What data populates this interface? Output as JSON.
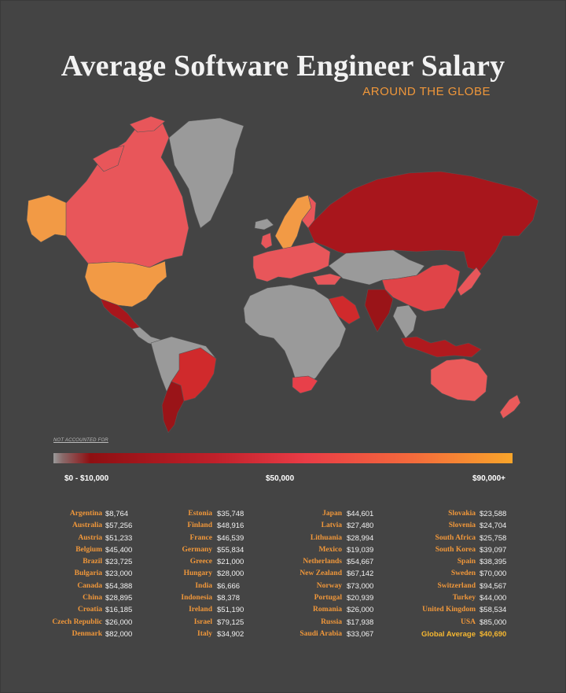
{
  "title": "Average Software Engineer Salary",
  "subtitle": "AROUND THE GLOBE",
  "legend": {
    "not_accounted": "NOT ACCOUNTED FOR",
    "low_label": "$0 - $10,000",
    "mid_label": "$50,000",
    "high_label": "$90,000+",
    "colors": {
      "none": "#9a9a9a",
      "low": "#8e0f12",
      "mid": "#ea3c46",
      "high": "#f9a52a"
    }
  },
  "columns": [
    [
      {
        "country": "Argentina",
        "salary": "$8,764"
      },
      {
        "country": "Australia",
        "salary": "$57,256"
      },
      {
        "country": "Austria",
        "salary": "$51,233"
      },
      {
        "country": "Belgium",
        "salary": "$45,400"
      },
      {
        "country": "Brazil",
        "salary": "$23,725"
      },
      {
        "country": "Bulgaria",
        "salary": "$23,000"
      },
      {
        "country": "Canada",
        "salary": "$54,388"
      },
      {
        "country": "China",
        "salary": "$28,895"
      },
      {
        "country": "Croatia",
        "salary": "$16,185"
      },
      {
        "country": "Czech Republic",
        "salary": "$26,000"
      },
      {
        "country": "Denmark",
        "salary": "$82,000"
      }
    ],
    [
      {
        "country": "Estonia",
        "salary": "$35,748"
      },
      {
        "country": "Finland",
        "salary": "$48,916"
      },
      {
        "country": "France",
        "salary": "$46,539"
      },
      {
        "country": "Germany",
        "salary": "$55,834"
      },
      {
        "country": "Greece",
        "salary": "$21,000"
      },
      {
        "country": "Hungary",
        "salary": "$28,000"
      },
      {
        "country": "India",
        "salary": "$6,666"
      },
      {
        "country": "Indonesia",
        "salary": "$8,378"
      },
      {
        "country": "Ireland",
        "salary": "$51,190"
      },
      {
        "country": "Israel",
        "salary": "$79,125"
      },
      {
        "country": "Italy",
        "salary": "$34,902"
      }
    ],
    [
      {
        "country": "Japan",
        "salary": "$44,601"
      },
      {
        "country": "Latvia",
        "salary": "$27,480"
      },
      {
        "country": "Lithuania",
        "salary": "$28,994"
      },
      {
        "country": "Mexico",
        "salary": "$19,039"
      },
      {
        "country": "Netherlands",
        "salary": "$54,667"
      },
      {
        "country": "New Zealand",
        "salary": "$67,142"
      },
      {
        "country": "Norway",
        "salary": "$73,000"
      },
      {
        "country": "Portugal",
        "salary": "$20,939"
      },
      {
        "country": "Romania",
        "salary": "$26,000"
      },
      {
        "country": "Russia",
        "salary": "$17,938"
      },
      {
        "country": "Saudi Arabia",
        "salary": "$33,067"
      }
    ],
    [
      {
        "country": "Slovakia",
        "salary": "$23,588"
      },
      {
        "country": "Slovenia",
        "salary": "$24,704"
      },
      {
        "country": "South Africa",
        "salary": "$25,758"
      },
      {
        "country": "South Korea",
        "salary": "$39,097"
      },
      {
        "country": "Spain",
        "salary": "$38,395"
      },
      {
        "country": "Sweden",
        "salary": "$70,000"
      },
      {
        "country": "Switzerland",
        "salary": "$94,567"
      },
      {
        "country": "Turkey",
        "salary": "$44,000"
      },
      {
        "country": "United Kingdom",
        "salary": "$58,534"
      },
      {
        "country": "USA",
        "salary": "$85,000"
      },
      {
        "country": "Global Average",
        "salary": "$40,690"
      }
    ]
  ],
  "map_regions": [
    {
      "region": "alaska",
      "color": "#f29a45"
    },
    {
      "region": "canada",
      "color": "#e8565a"
    },
    {
      "region": "usa",
      "color": "#f29a45"
    },
    {
      "region": "mexico",
      "color": "#a8161c"
    },
    {
      "region": "central-america",
      "color": "#9a9a9a"
    },
    {
      "region": "brazil",
      "color": "#d02a2c"
    },
    {
      "region": "argentina",
      "color": "#9a1418"
    },
    {
      "region": "south-america-other",
      "color": "#9a9a9a"
    },
    {
      "region": "greenland",
      "color": "#9a9a9a"
    },
    {
      "region": "iceland",
      "color": "#9a9a9a"
    },
    {
      "region": "norway-sweden",
      "color": "#f29a45"
    },
    {
      "region": "finland",
      "color": "#e8565a"
    },
    {
      "region": "europe",
      "color": "#e8565a"
    },
    {
      "region": "russia",
      "color": "#a8161c"
    },
    {
      "region": "africa",
      "color": "#9a9a9a"
    },
    {
      "region": "south-africa",
      "color": "#e8404a"
    },
    {
      "region": "saudi-arabia",
      "color": "#d02a2c"
    },
    {
      "region": "india",
      "color": "#9a1418"
    },
    {
      "region": "china",
      "color": "#e04448"
    },
    {
      "region": "central-asia",
      "color": "#9a9a9a"
    },
    {
      "region": "japan",
      "color": "#e8565a"
    },
    {
      "region": "southeast-asia",
      "color": "#9a9a9a"
    },
    {
      "region": "indonesia",
      "color": "#b01a1e"
    },
    {
      "region": "australia",
      "color": "#ea5a5a"
    },
    {
      "region": "new-zealand",
      "color": "#ea5a5a"
    }
  ]
}
